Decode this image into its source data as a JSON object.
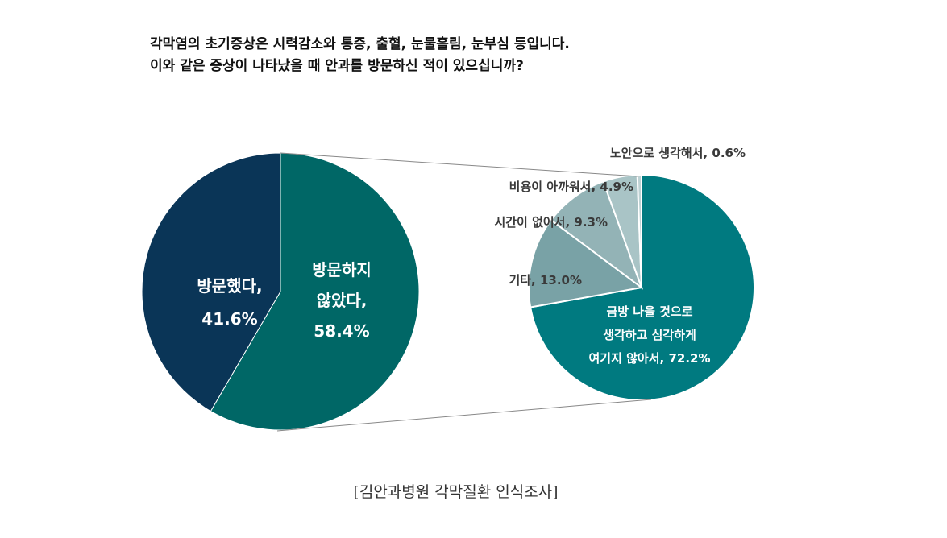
{
  "title_lines": [
    "각막염의 초기증상은 시력감소와 통증, 출혈, 눈물흘림, 눈부심 등입니다.",
    "이와 같은 증상이 나타났을 때 안과를 방문하신 적이 있으십니까?"
  ],
  "source": "[김안과병원 각막질환 인식조사]",
  "colors": {
    "visited": "#0a3557",
    "not_visited": "#006766",
    "sub_main": "#007a80",
    "sub_etc": "#79a2a6",
    "sub_time": "#93b3b6",
    "sub_cost": "#a9c4c6",
    "sub_jaundice": "#bfd2d4",
    "connector": "#888888"
  },
  "chart_data": [
    {
      "type": "pie",
      "name": "main",
      "title": "",
      "slices": [
        {
          "name": "방문했다",
          "lines": [
            "방문했다,",
            "41.6%"
          ],
          "value": 41.6,
          "color_key": "visited"
        },
        {
          "name": "방문하지 않았다",
          "lines": [
            "방문하지",
            "않았다,",
            "58.4%"
          ],
          "value": 58.4,
          "color_key": "not_visited"
        }
      ]
    },
    {
      "type": "pie",
      "name": "breakdown_of_not_visited",
      "title": "",
      "slices": [
        {
          "name": "금방 나을 것으로 생각하고 심각하게 여기지 않아서",
          "lines": [
            "금방 나을 것으로",
            "생각하고 심각하게",
            "여기지 않아서, 72.2%"
          ],
          "value": 72.2,
          "color_key": "sub_main"
        },
        {
          "name": "기타",
          "lines": [
            "기타, 13.0%"
          ],
          "value": 13.0,
          "color_key": "sub_etc"
        },
        {
          "name": "시간이 없어서",
          "lines": [
            "시간이 없어서, 9.3%"
          ],
          "value": 9.3,
          "color_key": "sub_time"
        },
        {
          "name": "비용이 아까워서",
          "lines": [
            "비용이 아까워서, 4.9%"
          ],
          "value": 4.9,
          "color_key": "sub_cost"
        },
        {
          "name": "노안으로 생각해서",
          "lines": [
            "노안으로 생각해서, 0.6%"
          ],
          "value": 0.6,
          "color_key": "sub_jaundice"
        }
      ]
    }
  ]
}
